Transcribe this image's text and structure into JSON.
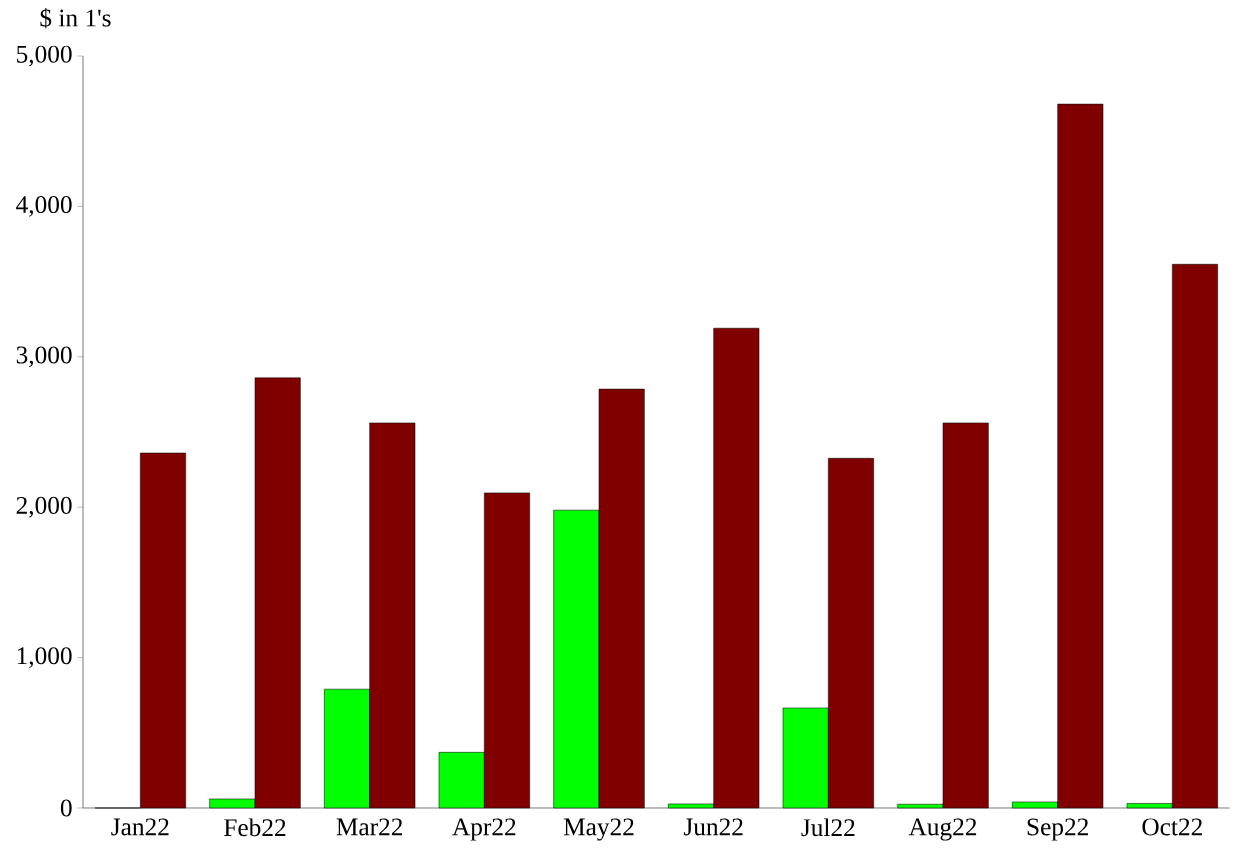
{
  "chart_data": {
    "type": "bar",
    "ylabel": "$ in 1's",
    "categories": [
      "Jan22",
      "Feb22",
      "Mar22",
      "Apr22",
      "May22",
      "Jun22",
      "Jul22",
      "Aug22",
      "Sep22",
      "Oct22"
    ],
    "series": [
      {
        "color": "#00ff00",
        "values": [
          0,
          60,
          790,
          370,
          1980,
          27,
          665,
          25,
          40,
          30
        ]
      },
      {
        "color": "#800000",
        "values": [
          2360,
          2860,
          2560,
          2095,
          2785,
          3190,
          2325,
          2560,
          4680,
          3615
        ]
      }
    ],
    "ylim": [
      0,
      5000
    ],
    "yticks": [
      {
        "value": 0,
        "label": "0"
      },
      {
        "value": 1000,
        "label": "1,000"
      },
      {
        "value": 2000,
        "label": "2,000"
      },
      {
        "value": 3000,
        "label": "3,000"
      },
      {
        "value": 4000,
        "label": "4,000"
      },
      {
        "value": 5000,
        "label": "5,000"
      }
    ],
    "grid": false
  }
}
